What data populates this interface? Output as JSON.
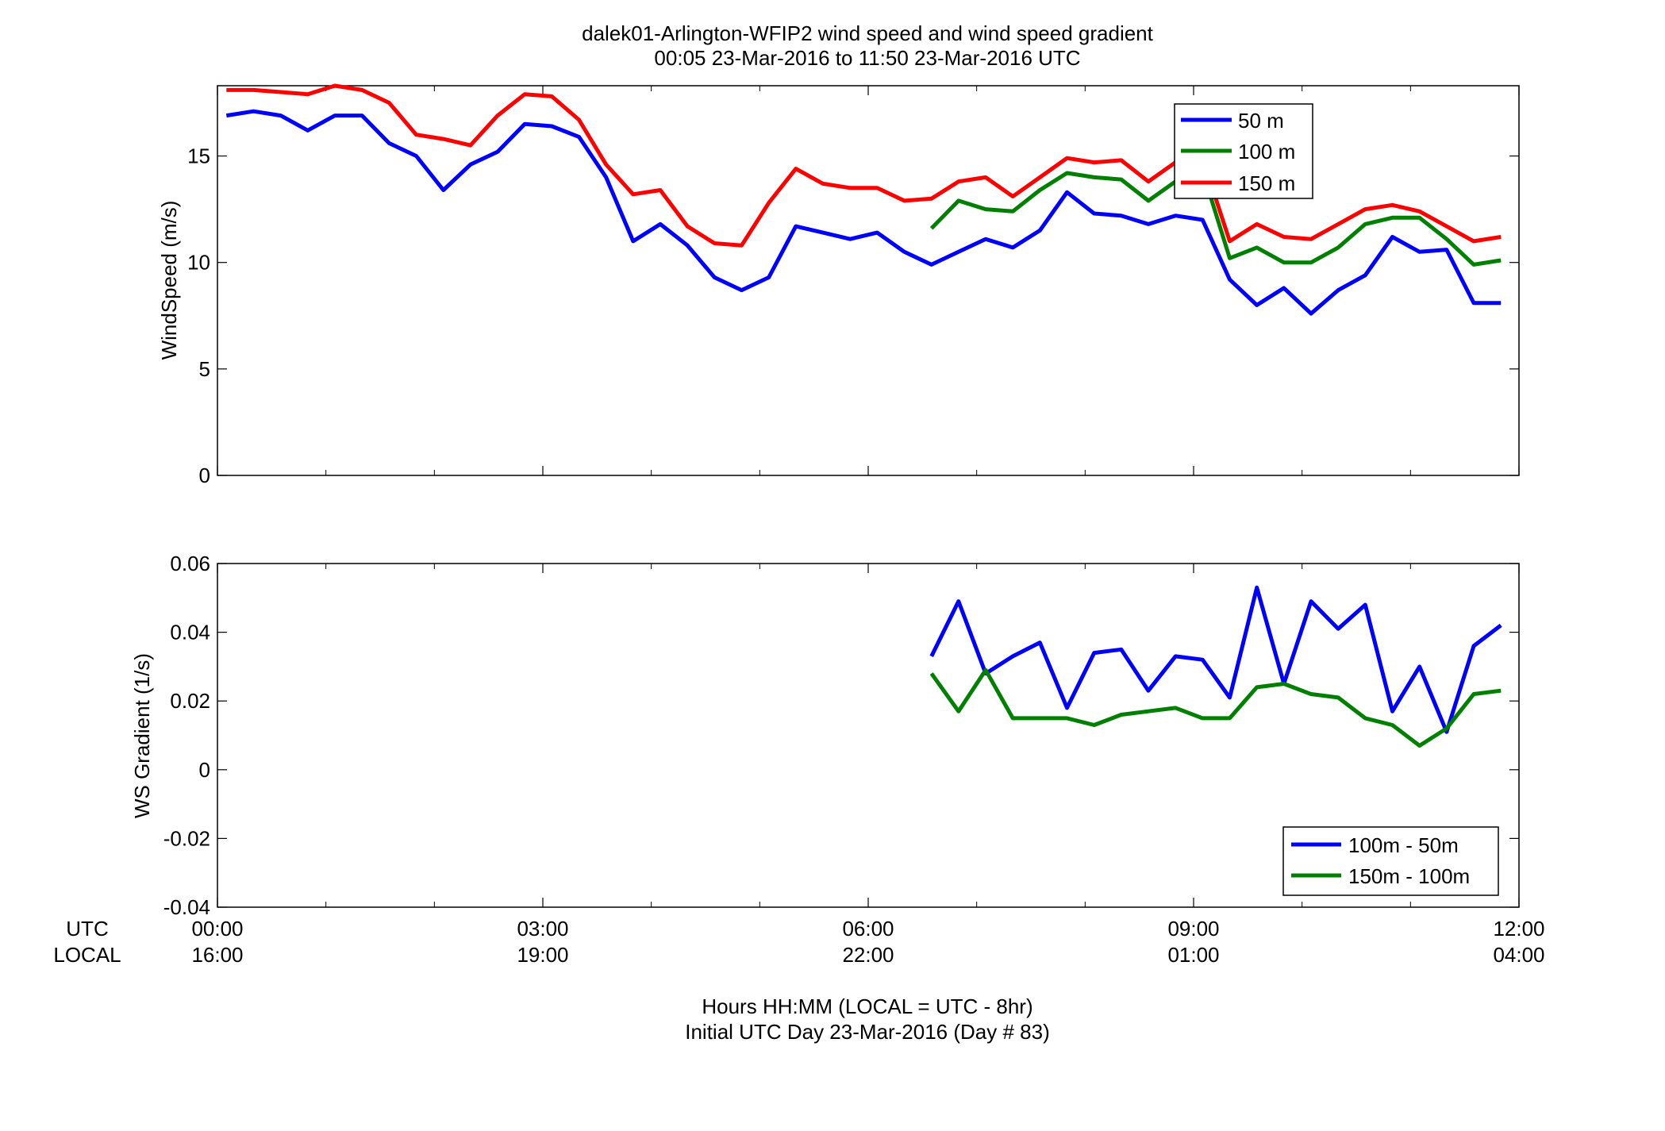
{
  "figure": {
    "title_line1": "dalek01-Arlington-WFIP2  wind speed and wind speed gradient",
    "title_line2": "00:05 23-Mar-2016 to 11:50 23-Mar-2016  UTC",
    "xlabel_line1": "Hours HH:MM  (LOCAL = UTC - 8hr)",
    "xlabel_line2": "Initial UTC Day 23-Mar-2016 (Day # 83)",
    "utc_row_label": "UTC",
    "local_row_label": "LOCAL",
    "utc_ticks": [
      "00:00",
      "03:00",
      "06:00",
      "09:00",
      "12:00"
    ],
    "local_ticks": [
      "16:00",
      "19:00",
      "22:00",
      "01:00",
      "04:00"
    ]
  },
  "chart_data": [
    {
      "type": "line",
      "ylabel": "WindSpeed (m/s)",
      "xlim_hours": [
        0,
        12
      ],
      "ylim": [
        0,
        18.3
      ],
      "yticks": [
        0,
        5,
        10,
        15
      ],
      "grid": false,
      "legend_position": "top-right",
      "series": [
        {
          "name": "50 m",
          "color": "#0000ff",
          "x": [
            0.083,
            0.333,
            0.583,
            0.833,
            1.083,
            1.333,
            1.583,
            1.833,
            2.083,
            2.333,
            2.583,
            2.833,
            3.083,
            3.333,
            3.583,
            3.833,
            4.083,
            4.333,
            4.583,
            4.833,
            5.083,
            5.333,
            5.583,
            5.833,
            6.083,
            6.333,
            6.583,
            6.833,
            7.083,
            7.333,
            7.583,
            7.833,
            8.083,
            8.333,
            8.583,
            8.833,
            9.083,
            9.333,
            9.583,
            9.833,
            10.083,
            10.333,
            10.583,
            10.833,
            11.083,
            11.333,
            11.583,
            11.833
          ],
          "y": [
            16.9,
            17.1,
            16.9,
            16.2,
            16.9,
            16.9,
            15.6,
            15.0,
            13.4,
            14.6,
            15.2,
            16.5,
            16.4,
            15.9,
            14.0,
            11.0,
            11.8,
            10.8,
            9.3,
            8.7,
            9.3,
            11.7,
            11.4,
            11.1,
            11.4,
            10.5,
            9.9,
            10.5,
            11.1,
            10.7,
            11.5,
            13.3,
            12.3,
            12.2,
            11.8,
            12.2,
            12.0,
            9.2,
            8.0,
            8.8,
            7.6,
            8.7,
            9.4,
            11.2,
            10.5,
            10.6,
            8.1,
            8.1
          ]
        },
        {
          "name": "100 m",
          "color": "#008000",
          "x": [
            6.583,
            6.833,
            7.083,
            7.333,
            7.583,
            7.833,
            8.083,
            8.333,
            8.583,
            8.833,
            9.083,
            9.333,
            9.583,
            9.833,
            10.083,
            10.333,
            10.583,
            10.833,
            11.083,
            11.333,
            11.583,
            11.833
          ],
          "y": [
            11.6,
            12.9,
            12.5,
            12.4,
            13.4,
            14.2,
            14.0,
            13.9,
            12.9,
            13.8,
            14.3,
            10.2,
            10.7,
            10.0,
            10.0,
            10.7,
            11.8,
            12.1,
            12.1,
            11.1,
            9.9,
            10.1
          ]
        },
        {
          "name": "150 m",
          "color": "#ff0000",
          "x": [
            0.083,
            0.333,
            0.583,
            0.833,
            1.083,
            1.333,
            1.583,
            1.833,
            2.083,
            2.333,
            2.583,
            2.833,
            3.083,
            3.333,
            3.583,
            3.833,
            4.083,
            4.333,
            4.583,
            4.833,
            5.083,
            5.333,
            5.583,
            5.833,
            6.083,
            6.333,
            6.583,
            6.833,
            7.083,
            7.333,
            7.583,
            7.833,
            8.083,
            8.333,
            8.583,
            8.833,
            9.083,
            9.333,
            9.583,
            9.833,
            10.083,
            10.333,
            10.583,
            10.833,
            11.083,
            11.333,
            11.583,
            11.833
          ],
          "y": [
            18.1,
            18.1,
            18.0,
            17.9,
            18.3,
            18.1,
            17.5,
            16.0,
            15.8,
            15.5,
            16.9,
            17.9,
            17.8,
            16.7,
            14.6,
            13.2,
            13.4,
            11.7,
            10.9,
            10.8,
            12.8,
            14.4,
            13.7,
            13.5,
            13.5,
            12.9,
            13.0,
            13.8,
            14.0,
            13.1,
            14.0,
            14.9,
            14.7,
            14.8,
            13.8,
            14.7,
            14.9,
            11.0,
            11.8,
            11.2,
            11.1,
            11.8,
            12.5,
            12.7,
            12.4,
            11.7,
            11.0,
            11.2
          ]
        }
      ]
    },
    {
      "type": "line",
      "ylabel": "WS Gradient (1/s)",
      "xlim_hours": [
        0,
        12
      ],
      "ylim": [
        -0.04,
        0.06
      ],
      "yticks": [
        -0.04,
        -0.02,
        0,
        0.02,
        0.04,
        0.06
      ],
      "ytick_labels": [
        "-0.04",
        "-0.02",
        "0",
        "0.02",
        "0.04",
        "0.06"
      ],
      "grid": false,
      "legend_position": "bottom-right",
      "series": [
        {
          "name": "100m - 50m",
          "color": "#0000ff",
          "x": [
            6.583,
            6.833,
            7.083,
            7.333,
            7.583,
            7.833,
            8.083,
            8.333,
            8.583,
            8.833,
            9.083,
            9.333,
            9.583,
            9.833,
            10.083,
            10.333,
            10.583,
            10.833,
            11.083,
            11.333,
            11.583,
            11.833
          ],
          "y": [
            0.033,
            0.049,
            0.028,
            0.033,
            0.037,
            0.018,
            0.034,
            0.035,
            0.023,
            0.033,
            0.032,
            0.021,
            0.053,
            0.025,
            0.049,
            0.041,
            0.048,
            0.017,
            0.03,
            0.011,
            0.036,
            0.042
          ]
        },
        {
          "name": "150m - 100m",
          "color": "#008000",
          "x": [
            6.583,
            6.833,
            7.083,
            7.333,
            7.583,
            7.833,
            8.083,
            8.333,
            8.583,
            8.833,
            9.083,
            9.333,
            9.583,
            9.833,
            10.083,
            10.333,
            10.583,
            10.833,
            11.083,
            11.333,
            11.583,
            11.833
          ],
          "y": [
            0.028,
            0.017,
            0.029,
            0.015,
            0.015,
            0.015,
            0.013,
            0.016,
            0.017,
            0.018,
            0.015,
            0.015,
            0.024,
            0.025,
            0.022,
            0.021,
            0.015,
            0.013,
            0.007,
            0.012,
            0.022,
            0.023
          ]
        }
      ]
    }
  ]
}
